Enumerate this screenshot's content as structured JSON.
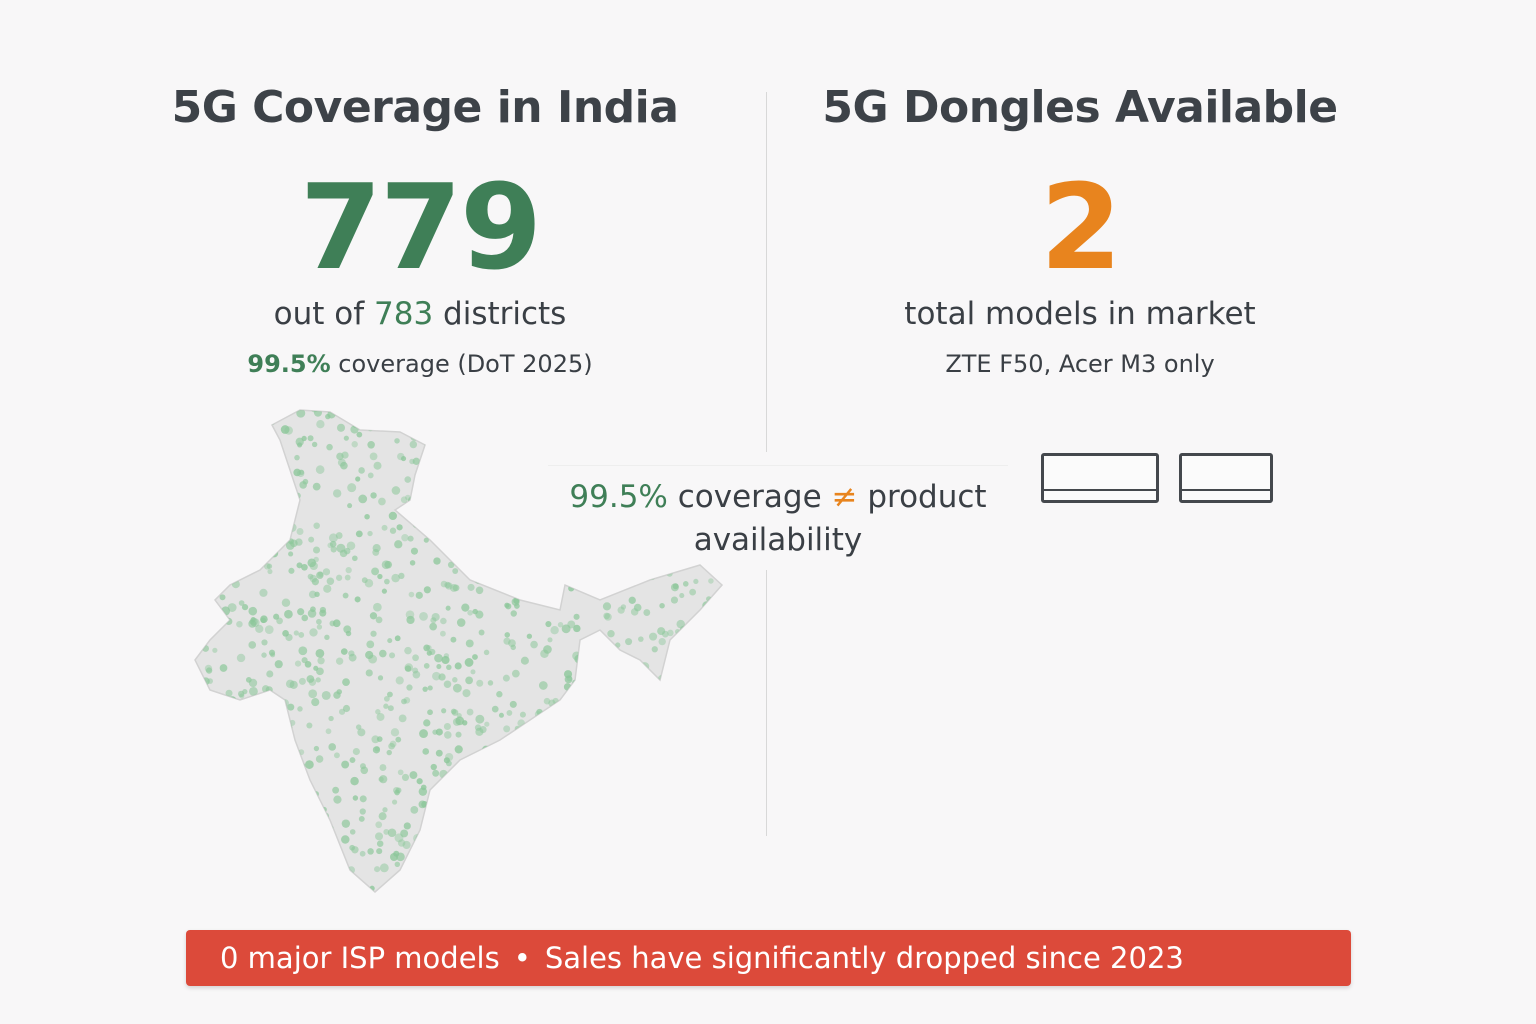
{
  "left": {
    "title": "5G Coverage in India",
    "big_number": "779",
    "sub_prefix": "out of ",
    "sub_total": "783",
    "sub_suffix": " districts",
    "coverage_pct": "99.5%",
    "coverage_note": " coverage (DoT 2025)"
  },
  "right": {
    "title": "5G Dongles Available",
    "big_number": "2",
    "sub": "total models in market",
    "models": "ZTE F50, Acer M3 only",
    "dongle_count": 2
  },
  "callout": {
    "pct": "99.5%",
    "text1": " coverage ",
    "symbol": "≠",
    "text2": " product availability"
  },
  "banner": {
    "part1": "0 major ISP models",
    "separator": "•",
    "part2": "Sales have significantly dropped since 2023"
  },
  "colors": {
    "green": "#3f7f57",
    "orange": "#e8841e",
    "red": "#dc4a3a"
  }
}
